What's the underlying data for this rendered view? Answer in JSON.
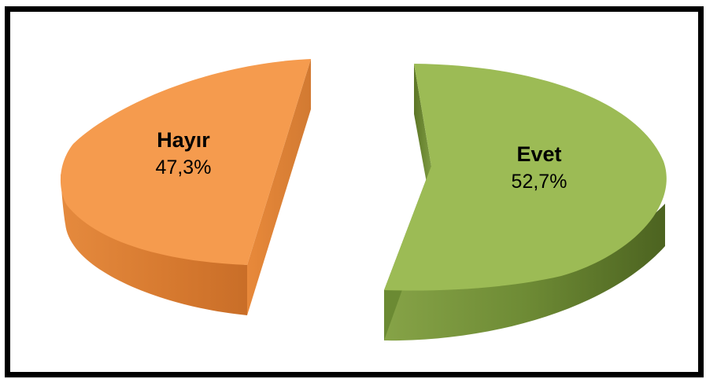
{
  "chart_data": {
    "type": "pie",
    "style": "3d-exploded",
    "slices": [
      {
        "label": "Hayır",
        "value": 47.3,
        "display": "47,3%",
        "color": "#F59B4E",
        "side_color": "#D2782F"
      },
      {
        "label": "Evet",
        "value": 52.7,
        "display": "52,7%",
        "color": "#9CBB55",
        "side_color": "#5F7A2A"
      }
    ],
    "title": "",
    "legend": "none"
  }
}
